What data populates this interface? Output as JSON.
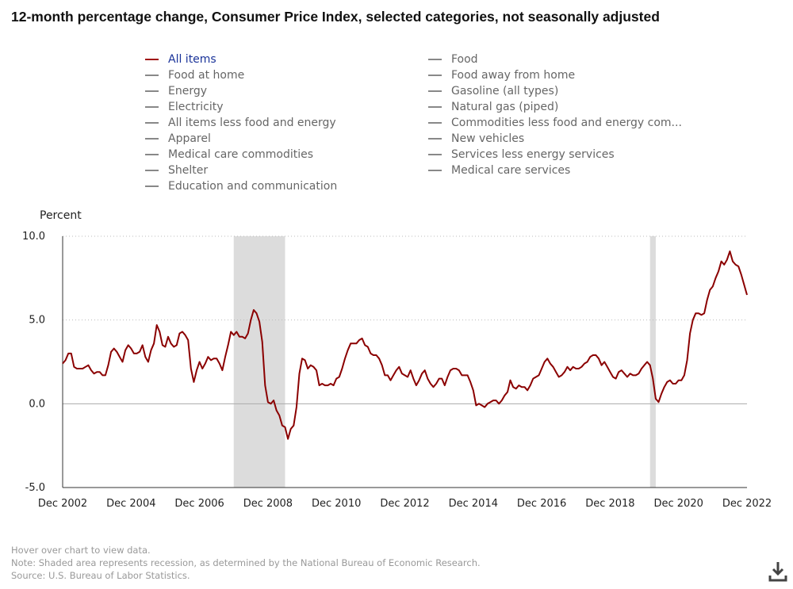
{
  "title": "12-month percentage change, Consumer Price Index, selected categories, not seasonally adjusted",
  "legend": {
    "left": [
      "All items",
      "Food at home",
      "Energy",
      "Electricity",
      "All items less food and energy",
      "Apparel",
      "Medical care commodities",
      "Shelter",
      "Education and communication"
    ],
    "right": [
      "Food",
      "Food away from home",
      "Gasoline (all types)",
      "Natural gas (piped)",
      "Commodities less food and energy com...",
      "New vehicles",
      "Services less energy services",
      "Medical care services"
    ]
  },
  "footer": {
    "hover": "Hover over chart to view data.",
    "note": "Note: Shaded area represents recession, as determined by the National Bureau of Economic Research.",
    "source": "Source: U.S. Bureau of Labor Statistics."
  },
  "colors": {
    "series": "#8b0000",
    "recession": "#dcdcdc",
    "legend_active": "#1a3399"
  },
  "icons": {
    "download": "download-icon"
  },
  "chart_data": {
    "type": "line",
    "ylabel": "Percent",
    "ylim": [
      -5.0,
      10.0
    ],
    "yticks": [
      "-5.0",
      "0.0",
      "5.0",
      "10.0"
    ],
    "xticks": [
      "Dec 2002",
      "Dec 2004",
      "Dec 2006",
      "Dec 2008",
      "Dec 2010",
      "Dec 2012",
      "Dec 2014",
      "Dec 2016",
      "Dec 2018",
      "Dec 2020",
      "Dec 2022"
    ],
    "x_start": "Dec 2002",
    "x_end": "Dec 2022",
    "recessions": [
      [
        "Dec 2007",
        "Jun 2009"
      ],
      [
        "Feb 2020",
        "Apr 2020"
      ]
    ],
    "series": [
      {
        "name": "All items",
        "values": [
          2.4,
          2.6,
          3.0,
          3.0,
          2.2,
          2.1,
          2.1,
          2.1,
          2.2,
          2.3,
          2.0,
          1.8,
          1.9,
          1.9,
          1.7,
          1.7,
          2.3,
          3.1,
          3.3,
          3.1,
          2.8,
          2.5,
          3.2,
          3.5,
          3.3,
          3.0,
          3.0,
          3.1,
          3.5,
          2.8,
          2.5,
          3.2,
          3.6,
          4.7,
          4.3,
          3.5,
          3.4,
          4.0,
          3.6,
          3.4,
          3.5,
          4.2,
          4.3,
          4.1,
          3.8,
          2.1,
          1.3,
          2.0,
          2.5,
          2.1,
          2.4,
          2.8,
          2.6,
          2.7,
          2.7,
          2.4,
          2.0,
          2.8,
          3.5,
          4.3,
          4.1,
          4.3,
          4.0,
          4.0,
          3.9,
          4.2,
          5.0,
          5.6,
          5.4,
          4.9,
          3.7,
          1.1,
          0.1,
          0.0,
          0.2,
          -0.4,
          -0.7,
          -1.3,
          -1.4,
          -2.1,
          -1.5,
          -1.3,
          -0.2,
          1.8,
          2.7,
          2.6,
          2.1,
          2.3,
          2.2,
          2.0,
          1.1,
          1.2,
          1.1,
          1.1,
          1.2,
          1.1,
          1.5,
          1.6,
          2.1,
          2.7,
          3.2,
          3.6,
          3.6,
          3.6,
          3.8,
          3.9,
          3.5,
          3.4,
          3.0,
          2.9,
          2.9,
          2.7,
          2.3,
          1.7,
          1.7,
          1.4,
          1.7,
          2.0,
          2.2,
          1.8,
          1.7,
          1.6,
          2.0,
          1.5,
          1.1,
          1.4,
          1.8,
          2.0,
          1.5,
          1.2,
          1.0,
          1.2,
          1.5,
          1.5,
          1.1,
          1.6,
          2.0,
          2.1,
          2.1,
          2.0,
          1.7,
          1.7,
          1.7,
          1.3,
          0.8,
          -0.1,
          0.0,
          -0.1,
          -0.2,
          0.0,
          0.1,
          0.2,
          0.2,
          0.0,
          0.2,
          0.5,
          0.7,
          1.4,
          1.0,
          0.9,
          1.1,
          1.0,
          1.0,
          0.8,
          1.1,
          1.5,
          1.6,
          1.7,
          2.1,
          2.5,
          2.7,
          2.4,
          2.2,
          1.9,
          1.6,
          1.7,
          1.9,
          2.2,
          2.0,
          2.2,
          2.1,
          2.1,
          2.2,
          2.4,
          2.5,
          2.8,
          2.9,
          2.9,
          2.7,
          2.3,
          2.5,
          2.2,
          1.9,
          1.6,
          1.5,
          1.9,
          2.0,
          1.8,
          1.6,
          1.8,
          1.7,
          1.7,
          1.8,
          2.1,
          2.3,
          2.5,
          2.3,
          1.5,
          0.3,
          0.1,
          0.6,
          1.0,
          1.3,
          1.4,
          1.2,
          1.2,
          1.4,
          1.4,
          1.7,
          2.6,
          4.2,
          5.0,
          5.4,
          5.4,
          5.3,
          5.4,
          6.2,
          6.8,
          7.0,
          7.5,
          7.9,
          8.5,
          8.3,
          8.6,
          9.1,
          8.5,
          8.3,
          8.2,
          7.7,
          7.1,
          6.5
        ]
      }
    ]
  }
}
